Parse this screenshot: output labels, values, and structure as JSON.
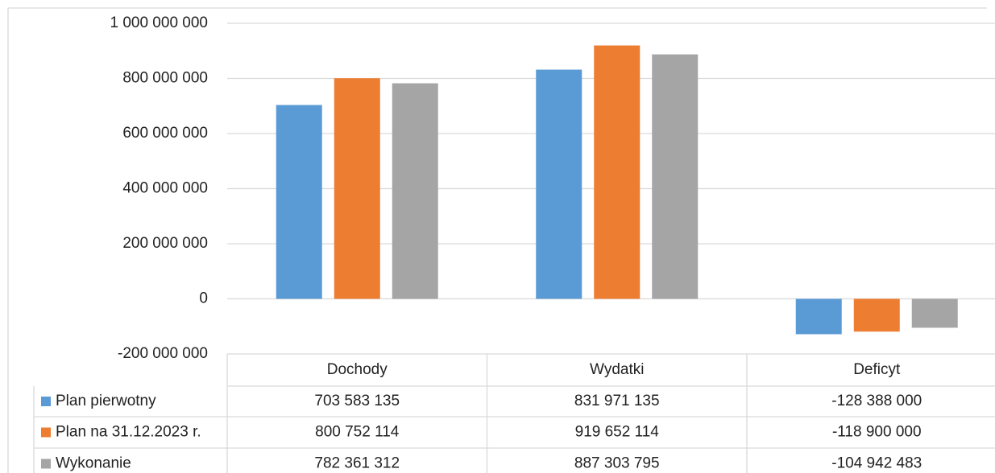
{
  "chart_data": {
    "type": "bar",
    "categories": [
      "Dochody",
      "Wydatki",
      "Deficyt"
    ],
    "series": [
      {
        "name": "Plan pierwotny",
        "color": "#5b9bd5",
        "values": [
          703583135,
          831971135,
          -128388000
        ],
        "value_labels": [
          "703 583 135",
          "831 971 135",
          "-128 388 000"
        ]
      },
      {
        "name": "Plan na 31.12.2023 r.",
        "color": "#ed7d31",
        "values": [
          800752114,
          919652114,
          -118900000
        ],
        "value_labels": [
          "800 752 114",
          "919 652 114",
          "-118 900 000"
        ]
      },
      {
        "name": "Wykonanie",
        "color": "#a5a5a5",
        "values": [
          782361312,
          887303795,
          -104942483
        ],
        "value_labels": [
          "782 361 312",
          "887 303 795",
          "-104 942 483"
        ]
      }
    ],
    "ylim": [
      -200000000,
      1000000000
    ],
    "yticks": [
      {
        "value": -200000000,
        "label": "-200 000 000"
      },
      {
        "value": 0,
        "label": "0"
      },
      {
        "value": 200000000,
        "label": "200 000 000"
      },
      {
        "value": 400000000,
        "label": "400 000 000"
      },
      {
        "value": 600000000,
        "label": "600 000 000"
      },
      {
        "value": 800000000,
        "label": "800 000 000"
      },
      {
        "value": 1000000000,
        "label": "1 000 000 000"
      }
    ],
    "grid": true
  }
}
